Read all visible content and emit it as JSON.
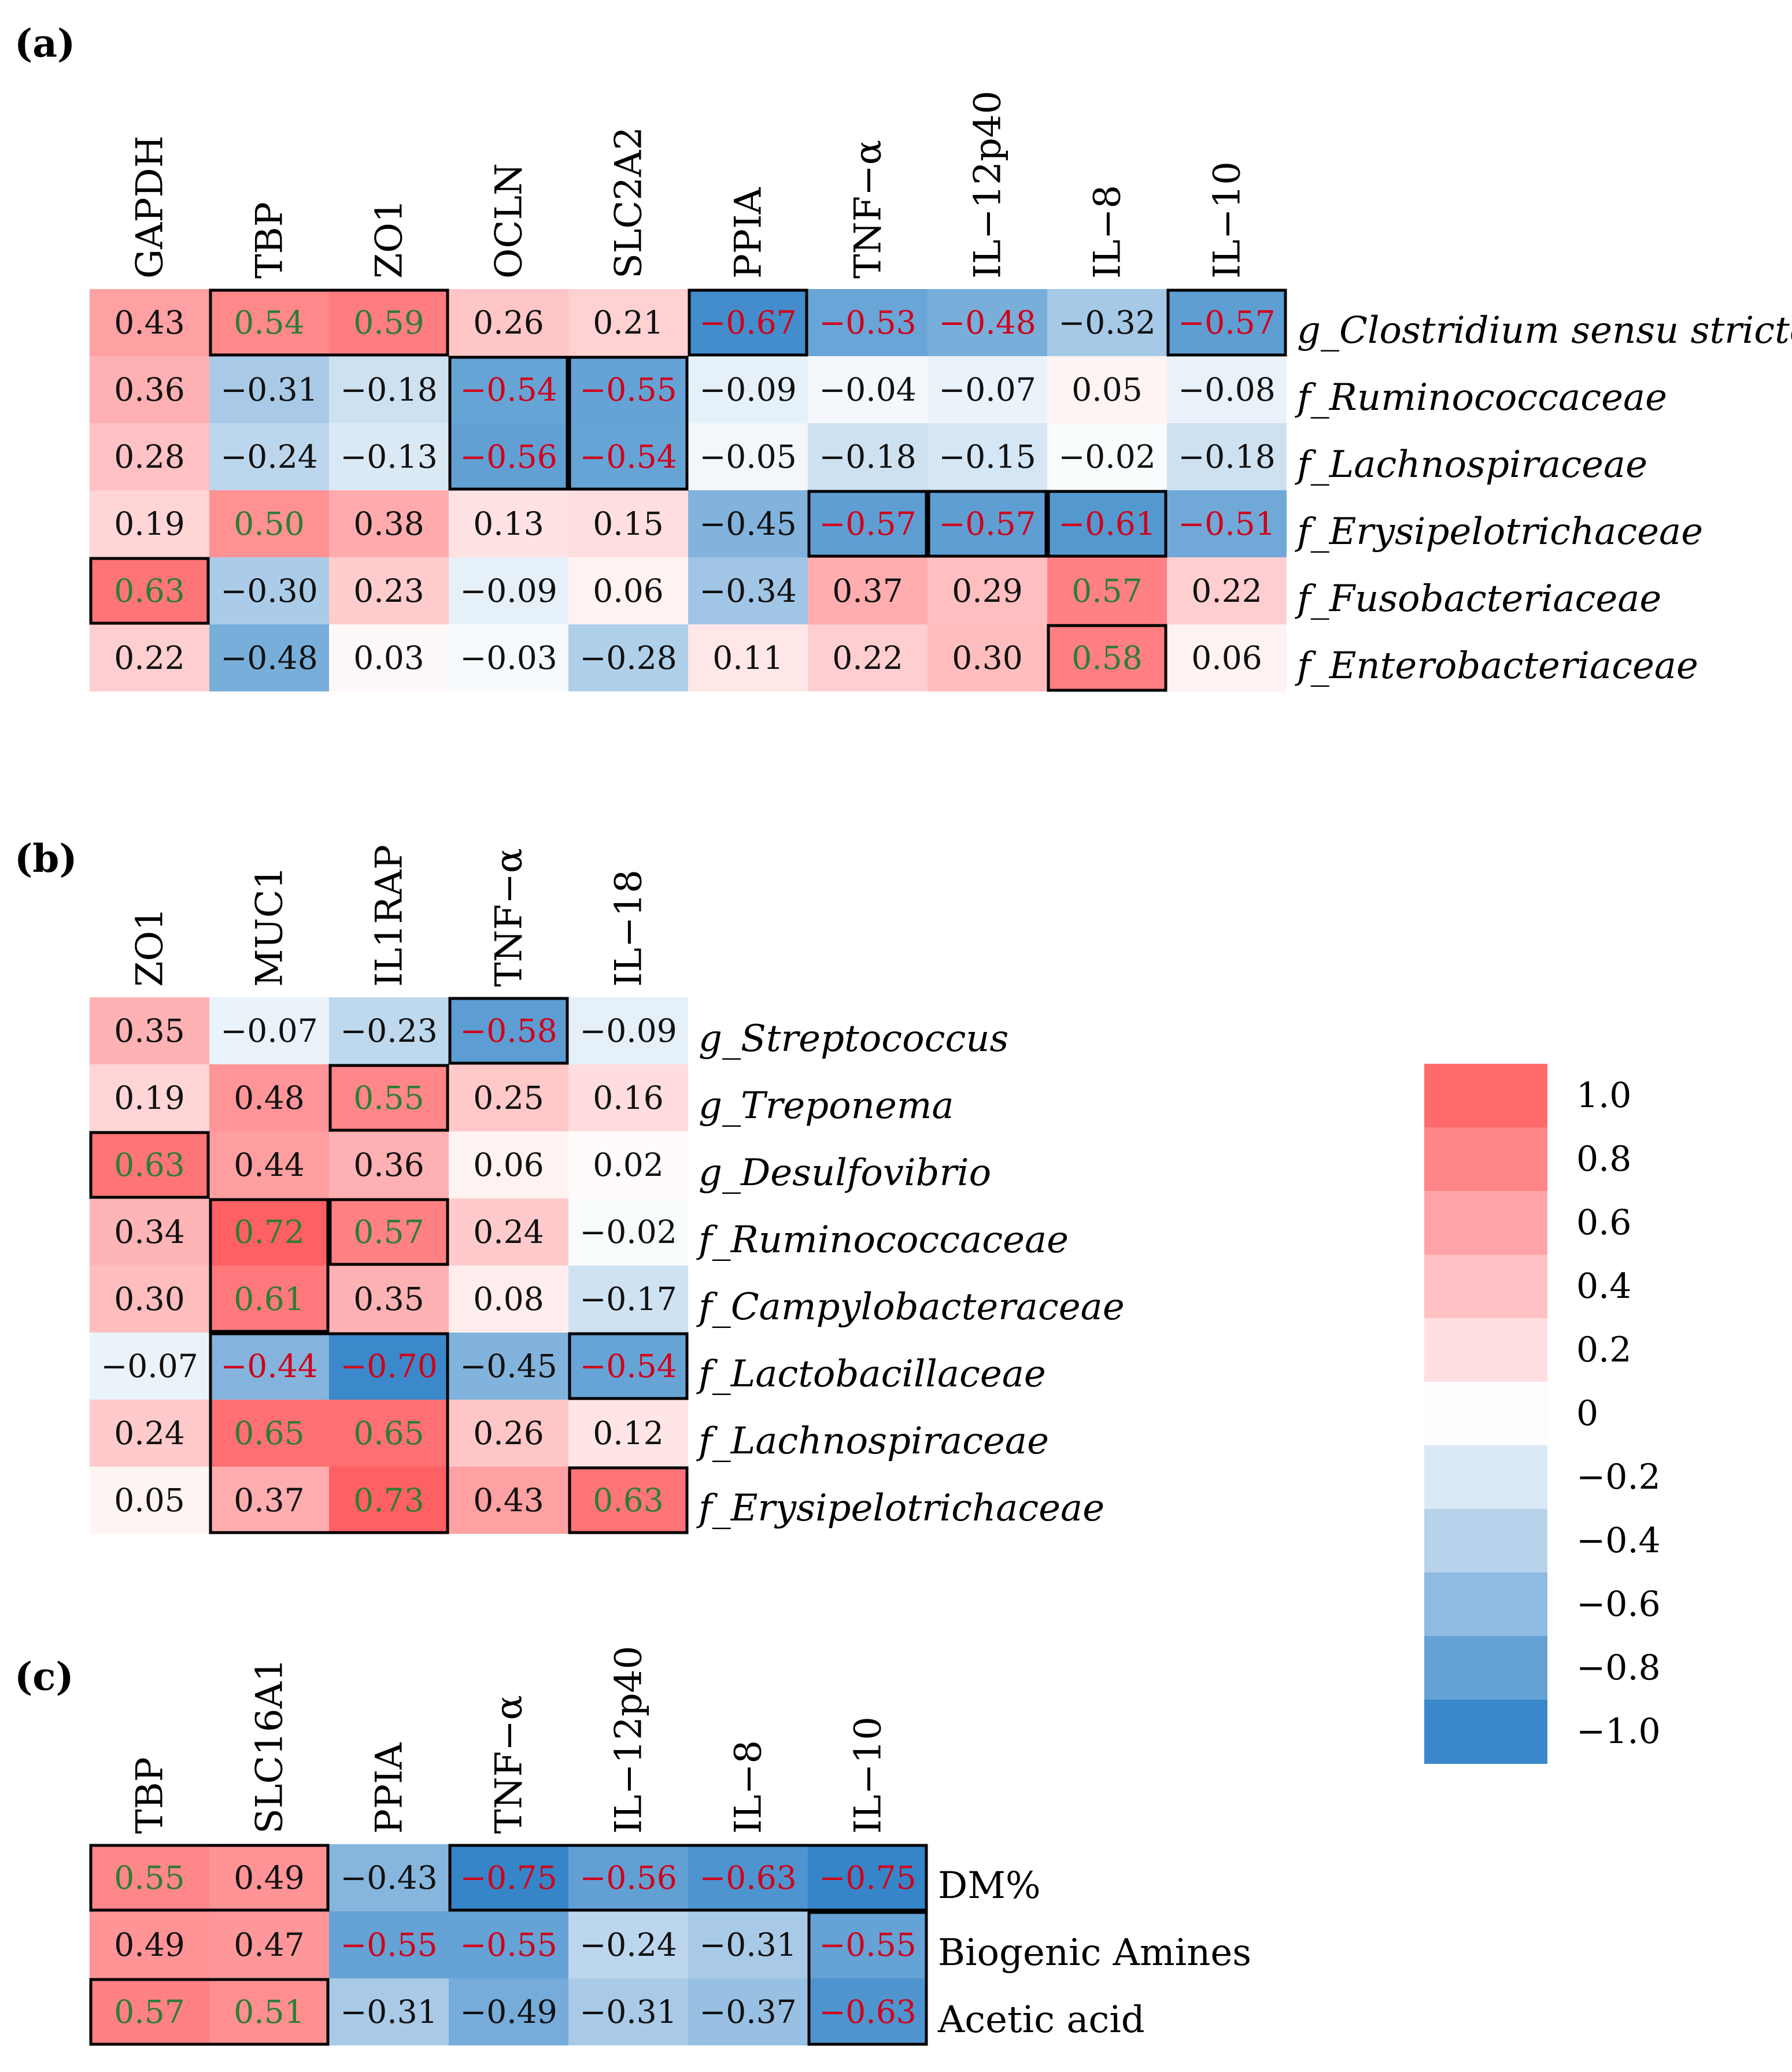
{
  "chart_data": [
    {
      "type": "heatmap",
      "panel_label": "(a)",
      "columns": [
        "GAPDH",
        "TBP",
        "ZO1",
        "OCLN",
        "SLC2A2",
        "PPIA",
        "TNF−α",
        "IL−12p40",
        "IL−8",
        "IL−10"
      ],
      "rows": [
        "g_Clostridium sensu stricto",
        "f_Ruminococcaceae",
        "f_Lachnospiraceae",
        "f_Erysipelotrichaceae",
        "f_Fusobacteriaceae",
        "f_Enterobacteriaceae"
      ],
      "italic_rows": true,
      "values": [
        [
          0.43,
          0.54,
          0.59,
          0.26,
          0.21,
          -0.67,
          -0.53,
          -0.48,
          -0.32,
          -0.57
        ],
        [
          0.36,
          -0.31,
          -0.18,
          -0.54,
          -0.55,
          -0.09,
          -0.04,
          -0.07,
          0.05,
          -0.08
        ],
        [
          0.28,
          -0.24,
          -0.13,
          -0.56,
          -0.54,
          -0.05,
          -0.18,
          -0.15,
          -0.02,
          -0.18
        ],
        [
          0.19,
          0.5,
          0.38,
          0.13,
          0.15,
          -0.45,
          -0.57,
          -0.57,
          -0.61,
          -0.51
        ],
        [
          0.63,
          -0.3,
          0.23,
          -0.09,
          0.06,
          -0.34,
          0.37,
          0.29,
          0.57,
          0.22
        ],
        [
          0.22,
          -0.48,
          0.03,
          -0.03,
          -0.28,
          0.11,
          0.22,
          0.3,
          0.58,
          0.06
        ]
      ],
      "labels": [
        [
          "0.43",
          "0.54",
          "0.59",
          "0.26",
          "0.21",
          "−0.67",
          "−0.53",
          "−0.48",
          "−0.32",
          "−0.57"
        ],
        [
          "0.36",
          "−0.31",
          "−0.18",
          "−0.54",
          "−0.55",
          "−0.09",
          "−0.04",
          "−0.07",
          "0.05",
          "−0.08"
        ],
        [
          "0.28",
          "−0.24",
          "−0.13",
          "−0.56",
          "−0.54",
          "−0.05",
          "−0.18",
          "−0.15",
          "−0.02",
          "−0.18"
        ],
        [
          "0.19",
          "0.50",
          "0.38",
          "0.13",
          "0.15",
          "−0.45",
          "−0.57",
          "−0.57",
          "−0.61",
          "−0.51"
        ],
        [
          "0.63",
          "−0.30",
          "0.23",
          "−0.09",
          "0.06",
          "−0.34",
          "0.37",
          "0.29",
          "0.57",
          "0.22"
        ],
        [
          "0.22",
          "−0.48",
          "0.03",
          "−0.03",
          "−0.28",
          "0.11",
          "0.22",
          "0.30",
          "0.58",
          "0.06"
        ]
      ],
      "significant": [
        [
          false,
          true,
          true,
          false,
          false,
          true,
          true,
          true,
          false,
          true
        ],
        [
          false,
          false,
          false,
          true,
          true,
          false,
          false,
          false,
          false,
          false
        ],
        [
          false,
          false,
          false,
          true,
          true,
          false,
          false,
          false,
          false,
          false
        ],
        [
          false,
          true,
          false,
          false,
          false,
          false,
          true,
          true,
          true,
          true
        ],
        [
          true,
          false,
          false,
          false,
          false,
          false,
          false,
          false,
          true,
          false
        ],
        [
          false,
          false,
          false,
          false,
          false,
          false,
          false,
          false,
          true,
          false
        ]
      ],
      "boxes": [
        {
          "row": 0,
          "col": 1,
          "width": 2,
          "height": 1
        },
        {
          "row": 0,
          "col": 5,
          "width": 1,
          "height": 1
        },
        {
          "row": 0,
          "col": 9,
          "width": 1,
          "height": 1
        },
        {
          "row": 1,
          "col": 3,
          "width": 1,
          "height": 2
        },
        {
          "row": 1,
          "col": 4,
          "width": 1,
          "height": 2
        },
        {
          "row": 3,
          "col": 6,
          "width": 1,
          "height": 1
        },
        {
          "row": 3,
          "col": 7,
          "width": 1,
          "height": 1
        },
        {
          "row": 3,
          "col": 8,
          "width": 1,
          "height": 1
        },
        {
          "row": 4,
          "col": 0,
          "width": 1,
          "height": 1
        },
        {
          "row": 5,
          "col": 8,
          "width": 1,
          "height": 1
        }
      ]
    },
    {
      "type": "heatmap",
      "panel_label": "(b)",
      "columns": [
        "ZO1",
        "MUC1",
        "IL1RAP",
        "TNF−α",
        "IL−18"
      ],
      "rows": [
        "g_Streptococcus",
        "g_Treponema",
        "g_Desulfovibrio",
        "f_Ruminococcaceae",
        "f_Campylobacteraceae",
        "f_Lactobacillaceae",
        "f_Lachnospiraceae",
        "f_Erysipelotrichaceae"
      ],
      "italic_rows": true,
      "values": [
        [
          0.35,
          -0.07,
          -0.23,
          -0.58,
          -0.09
        ],
        [
          0.19,
          0.48,
          0.55,
          0.25,
          0.16
        ],
        [
          0.63,
          0.44,
          0.36,
          0.06,
          0.02
        ],
        [
          0.34,
          0.72,
          0.57,
          0.24,
          -0.02
        ],
        [
          0.3,
          0.61,
          0.35,
          0.08,
          -0.17
        ],
        [
          -0.07,
          -0.44,
          -0.7,
          -0.45,
          -0.54
        ],
        [
          0.24,
          0.65,
          0.65,
          0.26,
          0.12
        ],
        [
          0.05,
          0.37,
          0.73,
          0.43,
          0.63
        ]
      ],
      "labels": [
        [
          "0.35",
          "−0.07",
          "−0.23",
          "−0.58",
          "−0.09"
        ],
        [
          "0.19",
          "0.48",
          "0.55",
          "0.25",
          "0.16"
        ],
        [
          "0.63",
          "0.44",
          "0.36",
          "0.06",
          "0.02"
        ],
        [
          "0.34",
          "0.72",
          "0.57",
          "0.24",
          "−0.02"
        ],
        [
          "0.30",
          "0.61",
          "0.35",
          "0.08",
          "−0.17"
        ],
        [
          "−0.07",
          "−0.44",
          "−0.70",
          "−0.45",
          "−0.54"
        ],
        [
          "0.24",
          "0.65",
          "0.65",
          "0.26",
          "0.12"
        ],
        [
          "0.05",
          "0.37",
          "0.73",
          "0.43",
          "0.63"
        ]
      ],
      "significant": [
        [
          false,
          false,
          false,
          true,
          false
        ],
        [
          false,
          false,
          true,
          false,
          false
        ],
        [
          true,
          false,
          false,
          false,
          false
        ],
        [
          false,
          true,
          true,
          false,
          false
        ],
        [
          false,
          true,
          false,
          false,
          false
        ],
        [
          false,
          true,
          true,
          false,
          true
        ],
        [
          false,
          true,
          true,
          false,
          false
        ],
        [
          false,
          false,
          true,
          false,
          true
        ]
      ],
      "boxes": [
        {
          "row": 0,
          "col": 3,
          "width": 1,
          "height": 1
        },
        {
          "row": 1,
          "col": 2,
          "width": 1,
          "height": 1
        },
        {
          "row": 2,
          "col": 0,
          "width": 1,
          "height": 1
        },
        {
          "row": 3,
          "col": 1,
          "width": 1,
          "height": 2
        },
        {
          "row": 3,
          "col": 2,
          "width": 1,
          "height": 1
        },
        {
          "row": 5,
          "col": 1,
          "width": 2,
          "height": 3
        },
        {
          "row": 5,
          "col": 4,
          "width": 1,
          "height": 1
        },
        {
          "row": 7,
          "col": 4,
          "width": 1,
          "height": 1
        }
      ]
    },
    {
      "type": "heatmap",
      "panel_label": "(c)",
      "columns": [
        "TBP",
        "SLC16A1",
        "PPIA",
        "TNF−α",
        "IL−12p40",
        "IL−8",
        "IL−10"
      ],
      "rows": [
        "DM%",
        "Biogenic Amines",
        "Acetic acid"
      ],
      "italic_rows": false,
      "values": [
        [
          0.55,
          0.49,
          -0.43,
          -0.75,
          -0.56,
          -0.63,
          -0.75
        ],
        [
          0.49,
          0.47,
          -0.55,
          -0.55,
          -0.24,
          -0.31,
          -0.55
        ],
        [
          0.57,
          0.51,
          -0.31,
          -0.49,
          -0.31,
          -0.37,
          -0.63
        ]
      ],
      "labels": [
        [
          "0.55",
          "0.49",
          "−0.43",
          "−0.75",
          "−0.56",
          "−0.63",
          "−0.75"
        ],
        [
          "0.49",
          "0.47",
          "−0.55",
          "−0.55",
          "−0.24",
          "−0.31",
          "−0.55"
        ],
        [
          "0.57",
          "0.51",
          "−0.31",
          "−0.49",
          "−0.31",
          "−0.37",
          "−0.63"
        ]
      ],
      "significant": [
        [
          true,
          false,
          false,
          true,
          true,
          true,
          true
        ],
        [
          false,
          false,
          true,
          true,
          false,
          false,
          true
        ],
        [
          true,
          true,
          false,
          false,
          false,
          false,
          true
        ]
      ],
      "boxes": [
        {
          "row": 0,
          "col": 0,
          "width": 2,
          "height": 1
        },
        {
          "row": 0,
          "col": 3,
          "width": 4,
          "height": 1
        },
        {
          "row": 1,
          "col": 6,
          "width": 1,
          "height": 2
        },
        {
          "row": 2,
          "col": 0,
          "width": 2,
          "height": 1
        }
      ]
    }
  ],
  "legend": {
    "ticks": [
      "1.0",
      "0.8",
      "0.6",
      "0.4",
      "0.2",
      "0",
      "−0.2",
      "−0.4",
      "−0.6",
      "−0.8",
      "−1.0"
    ],
    "colors": [
      "#ff6a6c",
      "#ff8587",
      "#ffa4a6",
      "#ffc1c3",
      "#ffdfe2",
      "#fdfdff",
      "#dbe8f5",
      "#b9d2ec",
      "#8fbae1",
      "#64a2d6",
      "#3a88cb"
    ]
  },
  "colors": {
    "positive_max": "#ff6064",
    "negative_max": "#3585c8",
    "zero": "#ffffff",
    "significant_positive_text": "#2e7d32",
    "significant_negative_text": "#d0021b",
    "text": "#111111",
    "box_border": "#000000"
  }
}
